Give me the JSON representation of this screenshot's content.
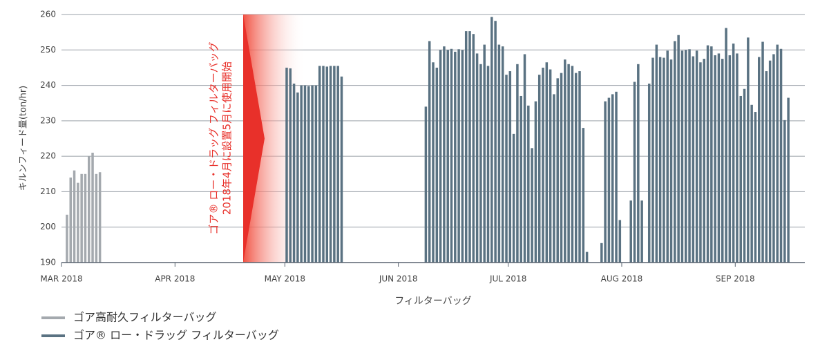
{
  "chart_data": {
    "type": "bar",
    "x_label": "フィルターバッグ",
    "y_label": "キルンフィード量(ton/hr)",
    "annotation": [
      "ゴア® ロー・ドラッグ フィルターバッグ",
      "2018年4月に設置5月に使用開始"
    ],
    "annotation_color": "#e8302a",
    "xlim": [
      0,
      203
    ],
    "ylim": [
      190,
      260
    ],
    "xticks": [
      {
        "value": 0,
        "label": "MAR 2018"
      },
      {
        "value": 31,
        "label": "APR 2018"
      },
      {
        "value": 61,
        "label": "MAY 2018"
      },
      {
        "value": 92,
        "label": "JUN 2018"
      },
      {
        "value": 122,
        "label": "JUL 2018"
      },
      {
        "value": 153,
        "label": "AUG 2018"
      },
      {
        "value": 184,
        "label": "SEP 2018"
      }
    ],
    "yticks": [
      190,
      200,
      210,
      220,
      230,
      240,
      250,
      260
    ],
    "grid": true,
    "series": [
      {
        "name": "ゴア高耐久フィルターバッグ",
        "color": "#a4a9ae",
        "x": [
          1,
          2,
          3,
          4,
          5,
          6,
          7,
          8,
          9,
          10
        ],
        "values": [
          203.5,
          214,
          216,
          212.5,
          215,
          215,
          220,
          221,
          215,
          215.5
        ]
      },
      {
        "name": "ゴア® ロー・ドラッグ フィルターバッグ",
        "color": "#5a7282",
        "x": [
          61,
          62,
          63,
          64,
          65,
          66,
          67,
          68,
          69,
          70,
          71,
          72,
          73,
          74,
          75,
          76,
          99,
          100,
          101,
          102,
          103,
          104,
          105,
          106,
          107,
          108,
          109,
          110,
          111,
          112,
          113,
          114,
          115,
          116,
          117,
          118,
          119,
          120,
          121,
          122,
          123,
          124,
          125,
          126,
          127,
          128,
          129,
          130,
          131,
          132,
          133,
          134,
          135,
          136,
          137,
          138,
          139,
          140,
          141,
          142,
          143,
          147,
          148,
          149,
          150,
          151,
          152,
          155,
          156,
          157,
          158,
          160,
          161,
          162,
          163,
          164,
          165,
          166,
          167,
          168,
          169,
          170,
          171,
          172,
          173,
          174,
          175,
          176,
          177,
          178,
          179,
          180,
          181,
          182,
          183,
          184,
          185,
          186,
          187,
          188,
          189,
          190,
          191,
          192,
          193,
          194,
          195,
          196,
          197,
          198
        ],
        "values": [
          245,
          244.8,
          240.5,
          238,
          240,
          240,
          239.8,
          240,
          240,
          245.5,
          245.5,
          245.3,
          245.5,
          245.5,
          245.5,
          242.5,
          234,
          252.5,
          246.5,
          245,
          250,
          251,
          250,
          250.3,
          249.5,
          250.2,
          250,
          255.3,
          255.3,
          254.5,
          249,
          246,
          251.5,
          245.5,
          259.3,
          258.2,
          251.5,
          251,
          243,
          244,
          226.3,
          246,
          237,
          248.8,
          234.3,
          222.3,
          235.5,
          243,
          245,
          246.5,
          244.5,
          237.5,
          242,
          243.5,
          247.3,
          246,
          245.5,
          243.5,
          244,
          228,
          193,
          195.5,
          235.5,
          236.5,
          237.5,
          238.2,
          202,
          207.5,
          241,
          246,
          207.5,
          240.5,
          247.8,
          251.5,
          248,
          247.8,
          249.8,
          247.3,
          252.5,
          254.2,
          249.8,
          250,
          250.2,
          248.2,
          249.8,
          246.5,
          247.5,
          251.3,
          251,
          248.5,
          249,
          247.5,
          256.2,
          248.5,
          251.8,
          249,
          237,
          239,
          253.5,
          234.5,
          232.5,
          248,
          252.3,
          244,
          247,
          248.8,
          251.5,
          250.3,
          230.2,
          236.5
        ]
      }
    ]
  }
}
